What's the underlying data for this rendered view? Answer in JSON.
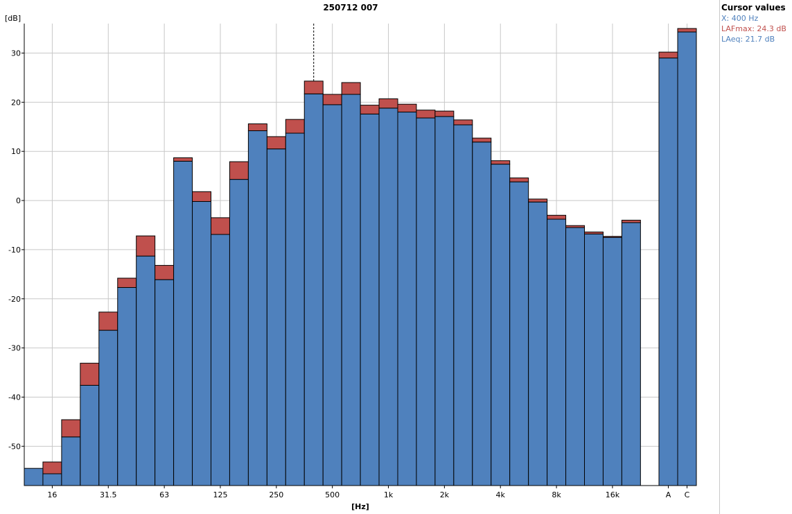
{
  "chart_data": {
    "type": "bar",
    "title": "250712 007",
    "ylabel": "[dB]",
    "xlabel": "[Hz]",
    "ylim": [
      -58,
      36
    ],
    "yticks": [
      30,
      20,
      10,
      0,
      -10,
      -20,
      -30,
      -40,
      -50
    ],
    "grid": true,
    "cursor_x": "400 Hz",
    "series": [
      {
        "name": "LAFmax",
        "color": "#c0504d"
      },
      {
        "name": "LAeq",
        "color": "#4f81bd"
      }
    ],
    "bands": [
      {
        "tick": "",
        "lafmax": -54.5,
        "laeq": -54.5
      },
      {
        "tick": "16",
        "lafmax": -53.2,
        "laeq": -55.6
      },
      {
        "tick": "",
        "lafmax": -44.6,
        "laeq": -48.1
      },
      {
        "tick": "",
        "lafmax": -33.1,
        "laeq": -37.6
      },
      {
        "tick": "31.5",
        "lafmax": -22.7,
        "laeq": -26.4
      },
      {
        "tick": "",
        "lafmax": -15.8,
        "laeq": -17.7
      },
      {
        "tick": "",
        "lafmax": -7.2,
        "laeq": -11.3
      },
      {
        "tick": "63",
        "lafmax": -13.2,
        "laeq": -16.1
      },
      {
        "tick": "",
        "lafmax": 8.7,
        "laeq": 8.0
      },
      {
        "tick": "",
        "lafmax": 1.8,
        "laeq": -0.2
      },
      {
        "tick": "125",
        "lafmax": -3.5,
        "laeq": -6.9
      },
      {
        "tick": "",
        "lafmax": 7.9,
        "laeq": 4.3
      },
      {
        "tick": "",
        "lafmax": 15.6,
        "laeq": 14.2
      },
      {
        "tick": "250",
        "lafmax": 13.0,
        "laeq": 10.5
      },
      {
        "tick": "",
        "lafmax": 16.5,
        "laeq": 13.7
      },
      {
        "tick": "",
        "lafmax": 24.3,
        "laeq": 21.7
      },
      {
        "tick": "500",
        "lafmax": 21.6,
        "laeq": 19.5
      },
      {
        "tick": "",
        "lafmax": 24.0,
        "laeq": 21.6
      },
      {
        "tick": "",
        "lafmax": 19.4,
        "laeq": 17.6
      },
      {
        "tick": "1k",
        "lafmax": 20.7,
        "laeq": 18.8
      },
      {
        "tick": "",
        "lafmax": 19.6,
        "laeq": 18.0
      },
      {
        "tick": "",
        "lafmax": 18.4,
        "laeq": 16.8
      },
      {
        "tick": "2k",
        "lafmax": 18.2,
        "laeq": 17.1
      },
      {
        "tick": "",
        "lafmax": 16.4,
        "laeq": 15.4
      },
      {
        "tick": "",
        "lafmax": 12.7,
        "laeq": 11.9
      },
      {
        "tick": "4k",
        "lafmax": 8.1,
        "laeq": 7.4
      },
      {
        "tick": "",
        "lafmax": 4.6,
        "laeq": 3.8
      },
      {
        "tick": "",
        "lafmax": 0.3,
        "laeq": -0.3
      },
      {
        "tick": "8k",
        "lafmax": -3.0,
        "laeq": -3.8
      },
      {
        "tick": "",
        "lafmax": -5.1,
        "laeq": -5.5
      },
      {
        "tick": "",
        "lafmax": -6.4,
        "laeq": -6.8
      },
      {
        "tick": "16k",
        "lafmax": -7.3,
        "laeq": -7.5
      },
      {
        "tick": "",
        "lafmax": -4.0,
        "laeq": -4.5
      }
    ],
    "totals": [
      {
        "tick": "A",
        "lafmax": 30.2,
        "laeq": 29.0
      },
      {
        "tick": "C",
        "lafmax": 35.0,
        "laeq": 34.3
      }
    ]
  },
  "cursor_panel": {
    "header": "Cursor values",
    "x_line": "X: 400 Hz",
    "lafmax_line": "LAFmax: 24.3 dB",
    "laeq_line": "LAeq: 21.7 dB"
  }
}
